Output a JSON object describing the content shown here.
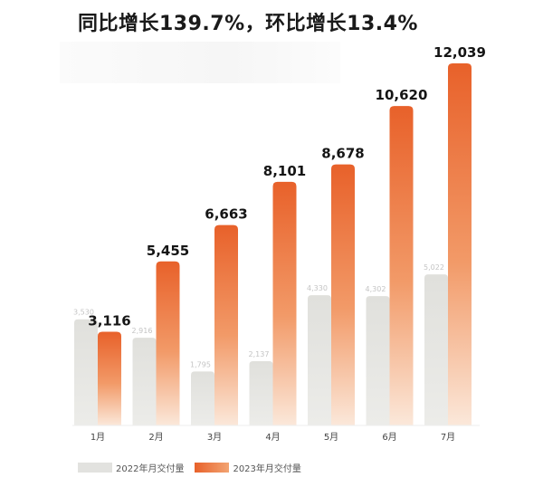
{
  "title": "同比增长139.7%，环比增长13.4%",
  "colors": {
    "series_2022": "#e2e2df",
    "series_2023_top": "#e8612a",
    "series_2023_bottom": "#fbe8da"
  },
  "chart_data": {
    "type": "bar",
    "title": "同比增长139.7%，环比增长13.4%",
    "categories": [
      "1月",
      "2月",
      "3月",
      "4月",
      "5月",
      "6月",
      "7月"
    ],
    "series": [
      {
        "name": "2022年月交付量",
        "values": [
          3530,
          2916,
          1795,
          2137,
          4330,
          4302,
          5022
        ],
        "labels": [
          "3,530",
          "2,916",
          "1,795",
          "2,137",
          "4,330",
          "4,302",
          "5,022"
        ]
      },
      {
        "name": "2023年月交付量",
        "values": [
          3116,
          5455,
          6663,
          8101,
          8678,
          10620,
          12039
        ],
        "labels": [
          "3,116",
          "5,455",
          "6,663",
          "8,101",
          "8,678",
          "10,620",
          "12,039"
        ]
      }
    ],
    "xlabel": "",
    "ylabel": "",
    "ylim": [
      0,
      12039
    ],
    "grid": false,
    "legend": "bottom-left"
  }
}
